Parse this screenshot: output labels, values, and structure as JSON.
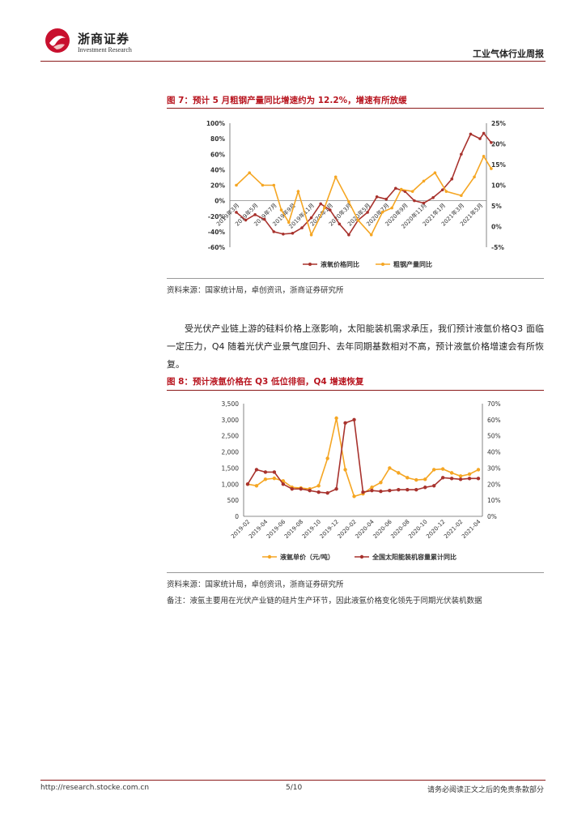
{
  "header": {
    "logo_cn": "浙商证券",
    "logo_en": "Investment Research",
    "report_title": "工业气体行业周报",
    "brand_color": "#b8151f"
  },
  "figure7": {
    "title": "图 7：预计 5 月粗钢产量同比增速约为 12.2%，增速有所放缓",
    "source": "资料来源：国家统计局，卓创资讯，浙商证券研究所"
  },
  "paragraph": "受光伏产业链上游的硅料价格上涨影响，太阳能装机需求承压，我们预计液氩价格Q3 面临一定压力，Q4 随着光伏产业景气度回升、去年同期基数相对不高，预计液氩价格增速会有所恢复。",
  "figure8": {
    "title": "图 8：预计液氩价格在 Q3 低位徘徊，Q4 增速恢复",
    "source": "资料来源：国家统计局，卓创资讯，浙商证券研究所",
    "remark": "备注：液氩主要用在光伏产业链的硅片生产环节，因此液氩价格变化领先于同期光伏装机数据"
  },
  "footer": {
    "url": "http://research.stocke.com.cn",
    "page": "5/10",
    "disclaimer": "请务必阅读正文之后的免责条款部分"
  },
  "chart_data": [
    {
      "type": "line",
      "x": [
        "2019年3月",
        "2019年5月",
        "2019年7月",
        "2019年9月",
        "2019年11月",
        "2020年1月",
        "2020年3月",
        "2020年5月",
        "2020年7月",
        "2020年9月",
        "2020年11月",
        "2021年1月",
        "2021年3月",
        "2021年5月"
      ],
      "left_axis": {
        "ylim": [
          -60,
          100
        ],
        "ticks": [
          "100%",
          "80%",
          "60%",
          "40%",
          "20%",
          "0%",
          "-20%",
          "-40%",
          "-60%"
        ]
      },
      "right_axis": {
        "ylim": [
          -5,
          25
        ],
        "ticks": [
          "25%",
          "20%",
          "15%",
          "10%",
          "5%",
          "0%",
          "-5%"
        ]
      },
      "series": [
        {
          "name": "液氧价格同比",
          "axis": "left",
          "color": "#a8322d",
          "marker": "circle",
          "x": [
            0,
            0.5,
            1,
            1.5,
            2,
            2.5,
            3,
            3.5,
            4,
            4.5,
            5,
            5.5,
            6,
            6.5,
            7,
            7.5,
            8,
            8.5,
            9,
            9.5,
            10,
            10.5,
            11,
            11.5,
            12,
            12.5,
            13,
            13.2,
            13.6
          ],
          "values": [
            -15,
            -25,
            -18,
            -24,
            -40,
            -43,
            -42,
            -35,
            -22,
            -4,
            -12,
            -30,
            -44,
            -25,
            -15,
            5,
            2,
            16,
            12,
            0,
            -3,
            4,
            14,
            28,
            60,
            86,
            80,
            87,
            75
          ]
        },
        {
          "name": "粗钢产量同比",
          "axis": "right",
          "color": "#f5a623",
          "marker": "circle",
          "x": [
            0,
            0.7,
            1.4,
            2,
            2.4,
            2.8,
            3.3,
            4,
            4.7,
            5.3,
            6,
            6.5,
            7.2,
            7.8,
            8.3,
            8.8,
            9.4,
            10,
            10.6,
            11.2,
            12,
            12.7,
            13.2,
            13.6
          ],
          "values": [
            10,
            13,
            10,
            10,
            4,
            1,
            8.5,
            -2,
            4.5,
            12,
            6,
            1.5,
            -2,
            3.5,
            4.5,
            9,
            8.5,
            11,
            13,
            8.5,
            7.5,
            12,
            17,
            14
          ]
        }
      ]
    },
    {
      "type": "line",
      "x": [
        "2019-02",
        "2019-03",
        "2019-04",
        "2019-05",
        "2019-06",
        "2019-07",
        "2019-08",
        "2019-09",
        "2019-10",
        "2019-11",
        "2019-12",
        "2020-01",
        "2020-02",
        "2020-03",
        "2020-04",
        "2020-05",
        "2020-06",
        "2020-07",
        "2020-08",
        "2020-09",
        "2020-10",
        "2020-11",
        "2020-12",
        "2021-01",
        "2021-02",
        "2021-03",
        "2021-04"
      ],
      "tick_labels": [
        "2019-02",
        "2019-04",
        "2019-06",
        "2019-08",
        "2019-10",
        "2019-12",
        "2020-02",
        "2020-04",
        "2020-06",
        "2020-08",
        "2020-10",
        "2020-12",
        "2021-02",
        "2021-04"
      ],
      "left_axis": {
        "ylim": [
          0,
          3500
        ],
        "ticks": [
          "3,500",
          "3,000",
          "2,500",
          "2,000",
          "1,500",
          "1,000",
          "500",
          "0"
        ]
      },
      "right_axis": {
        "ylim": [
          0,
          70
        ],
        "ticks": [
          "70%",
          "60%",
          "50%",
          "40%",
          "30%",
          "20%",
          "10%",
          "0%"
        ]
      },
      "series": [
        {
          "name": "液氩单价（元/吨）",
          "axis": "left",
          "color": "#f5a623",
          "marker": "circle",
          "values": [
            1000,
            950,
            1150,
            1180,
            1100,
            900,
            880,
            850,
            950,
            1800,
            3050,
            1450,
            620,
            700,
            900,
            1050,
            1500,
            1350,
            1200,
            1130,
            1150,
            1450,
            1470,
            1350,
            1250,
            1310,
            1450
          ]
        },
        {
          "name": "全国太阳能装机容量累计同比",
          "axis": "right",
          "color": "#a8322d",
          "marker": "circle",
          "values": [
            20,
            29,
            27.5,
            27.5,
            20,
            17,
            17,
            16,
            15,
            14.5,
            17,
            58,
            60,
            15,
            16,
            15.5,
            16,
            16.5,
            16.5,
            16.5,
            18,
            19,
            24,
            23.5,
            23,
            23.5,
            23.5
          ]
        }
      ]
    }
  ]
}
